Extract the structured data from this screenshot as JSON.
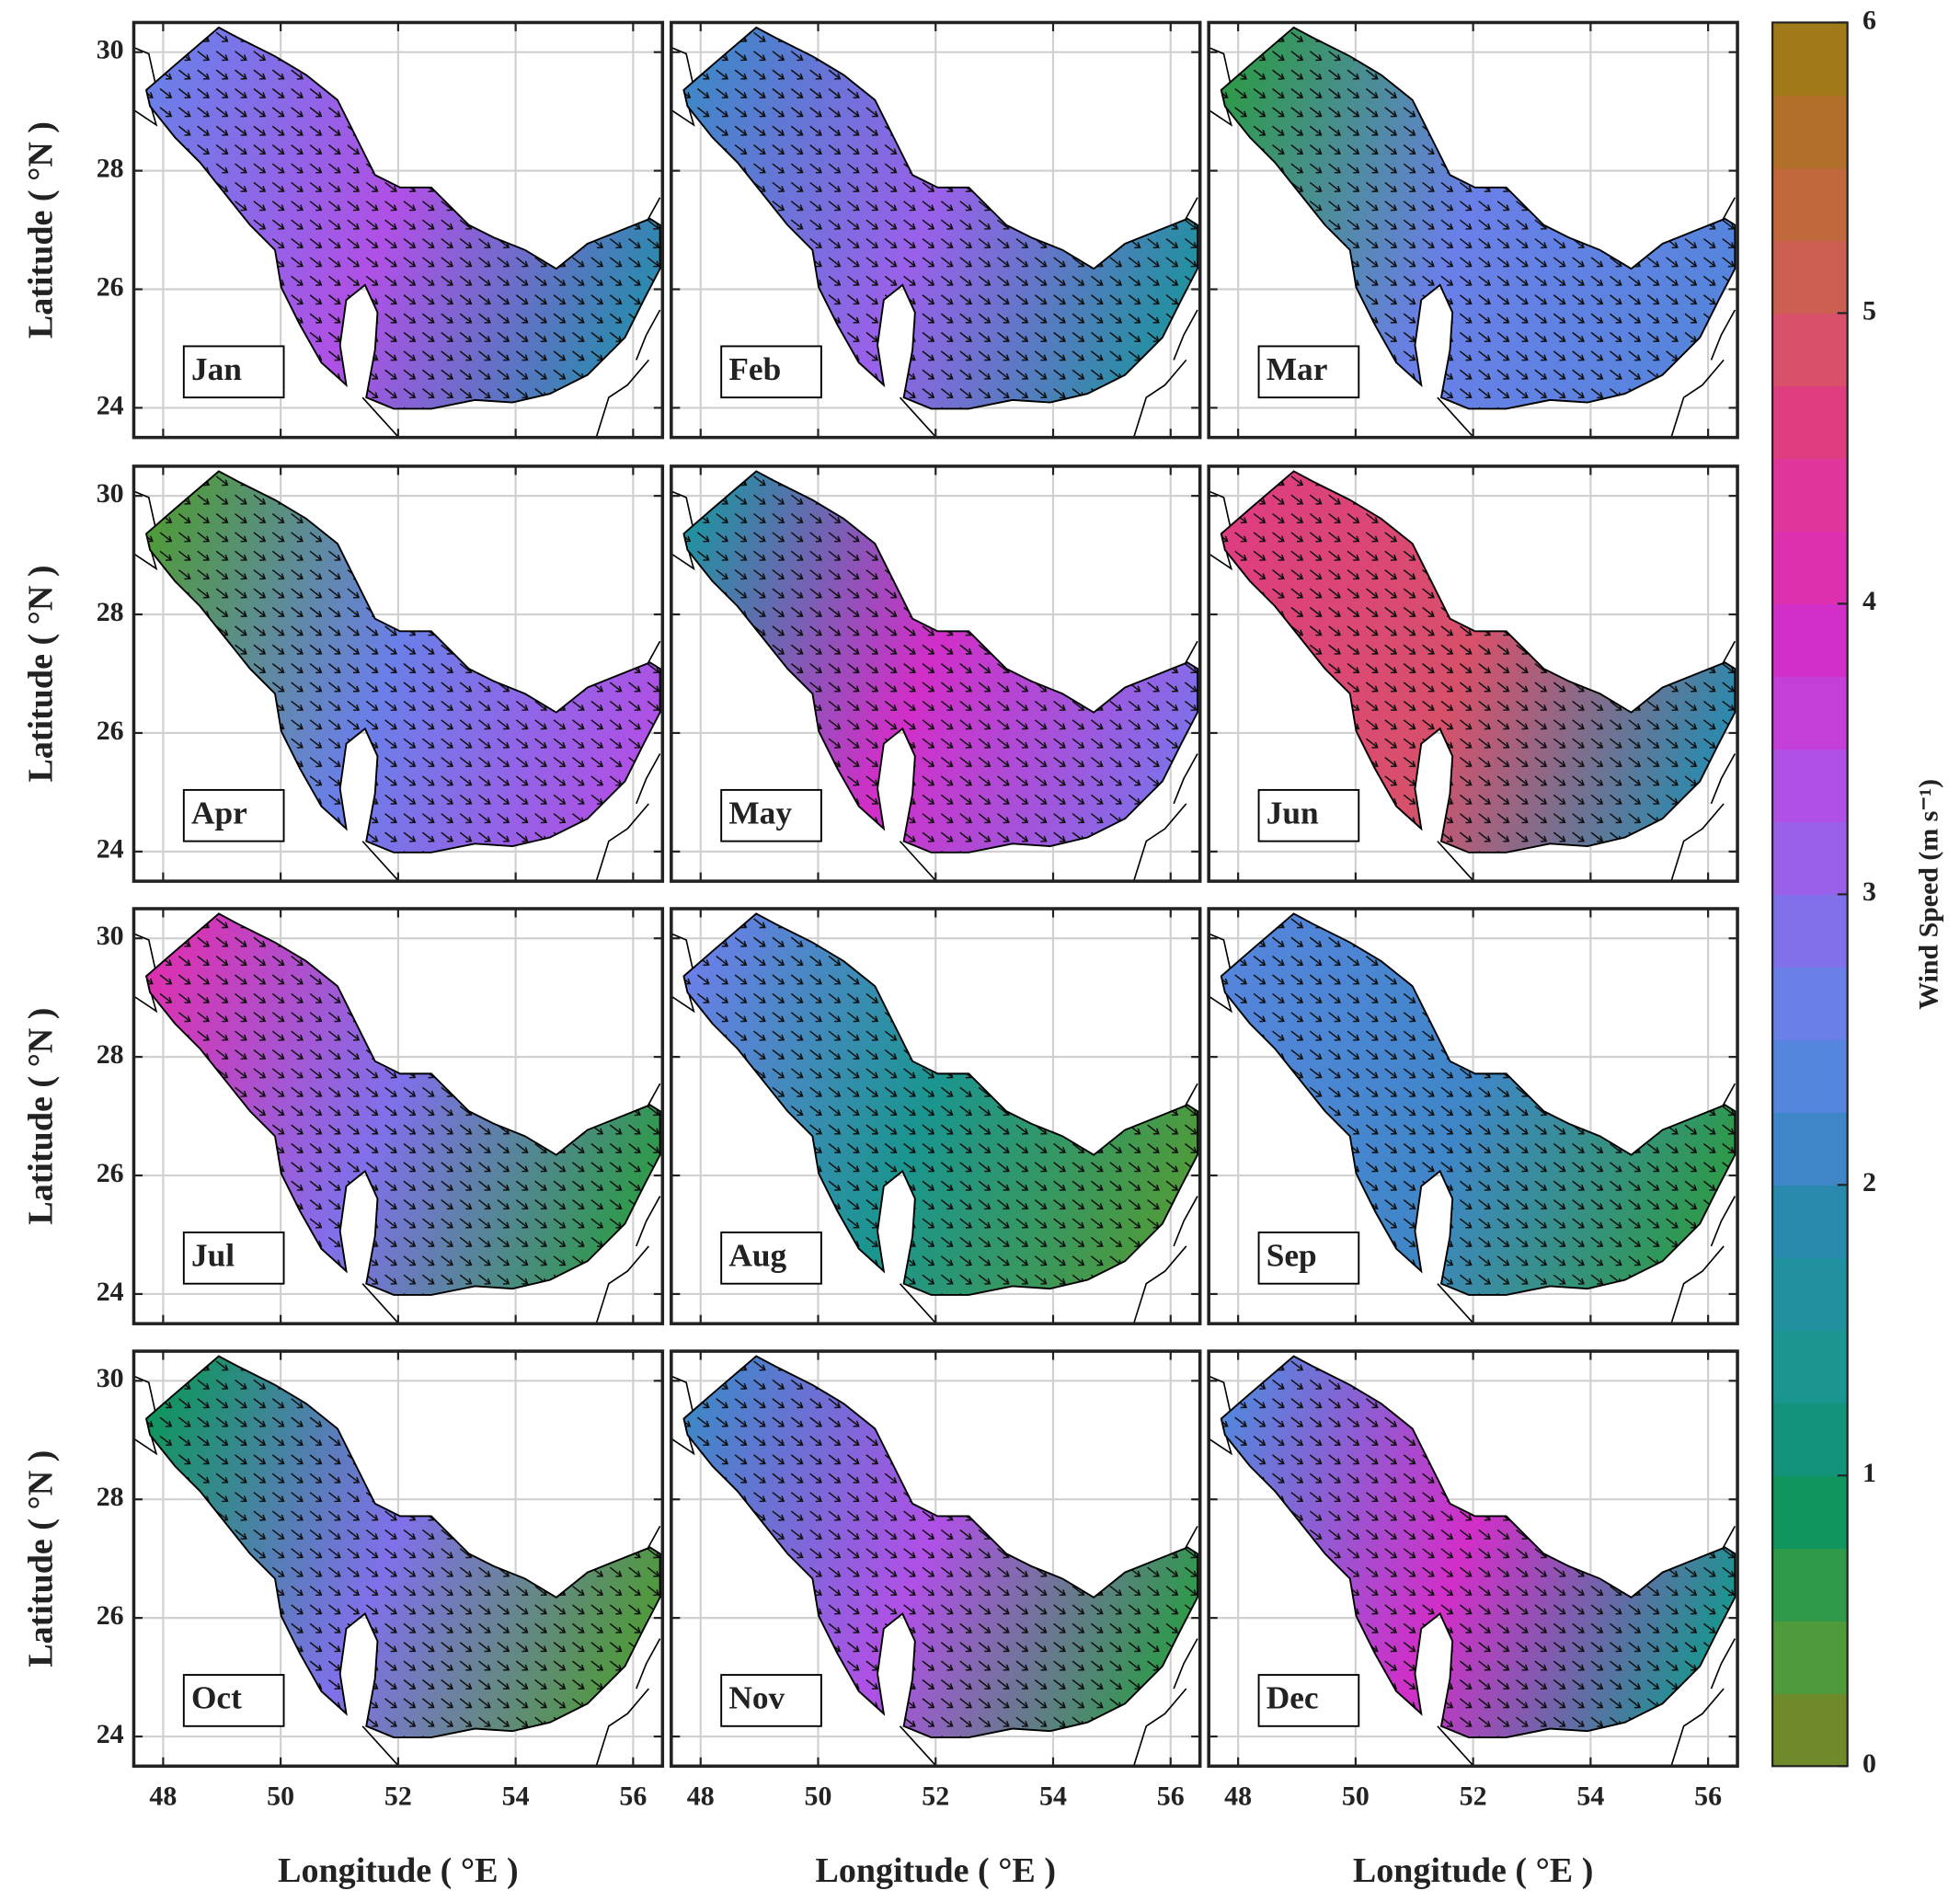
{
  "panels": [
    {
      "label": "Jan",
      "colors": [
        "#6a7fe8",
        "#b050e6",
        "#2a8aae"
      ]
    },
    {
      "label": "Feb",
      "colors": [
        "#3f86c8",
        "#9a60ea",
        "#2191a0"
      ]
    },
    {
      "label": "Mar",
      "colors": [
        "#2e9a4a",
        "#6a7fe8",
        "#5585dc"
      ]
    },
    {
      "label": "Apr",
      "colors": [
        "#4f9a3a",
        "#6a7fe8",
        "#b050e6"
      ]
    },
    {
      "label": "May",
      "colors": [
        "#2191a0",
        "#d22ec8",
        "#8070ea"
      ]
    },
    {
      "label": "Jun",
      "colors": [
        "#de3d80",
        "#d8506a",
        "#2a8aae"
      ]
    },
    {
      "label": "Jul",
      "colors": [
        "#dc30b0",
        "#8070ea",
        "#2e9a4a"
      ]
    },
    {
      "label": "Aug",
      "colors": [
        "#6a7fe8",
        "#1a958f",
        "#4f9a3a"
      ]
    },
    {
      "label": "Sep",
      "colors": [
        "#5585dc",
        "#3f86c8",
        "#2e9a4a"
      ]
    },
    {
      "label": "Oct",
      "colors": [
        "#10955e",
        "#8070ea",
        "#4f9a3a"
      ]
    },
    {
      "label": "Nov",
      "colors": [
        "#3f86c8",
        "#b050e6",
        "#2e9a4a"
      ]
    },
    {
      "label": "Dec",
      "colors": [
        "#5585dc",
        "#d22ec8",
        "#1a958f"
      ]
    }
  ],
  "x_axis": {
    "label": "Longitude ( °E )",
    "lim": [
      47.5,
      56.5
    ],
    "ticks": [
      48,
      50,
      52,
      54,
      56
    ]
  },
  "y_axis": {
    "label": "Latitude ( °N )",
    "lim": [
      23.5,
      30.5
    ],
    "ticks": [
      24,
      26,
      28,
      30
    ]
  },
  "grid": true,
  "colorbar": {
    "label": "Wind Speed (m s⁻¹)",
    "lim": [
      0,
      6
    ],
    "ticks": [
      0,
      1,
      2,
      3,
      4,
      5,
      6
    ],
    "colors": [
      "#6e8a2a",
      "#4f9a3a",
      "#2e9a4a",
      "#10955e",
      "#12937a",
      "#1a958f",
      "#2191a0",
      "#2a8aae",
      "#3f86c8",
      "#5585dc",
      "#6a7fe8",
      "#8070ea",
      "#9a60ea",
      "#b050e6",
      "#c43ed8",
      "#d22ec8",
      "#dc30b0",
      "#e0359a",
      "#de3d80",
      "#d8506a",
      "#cc5e52",
      "#c0683c",
      "#b0702a",
      "#a07a18"
    ]
  }
}
